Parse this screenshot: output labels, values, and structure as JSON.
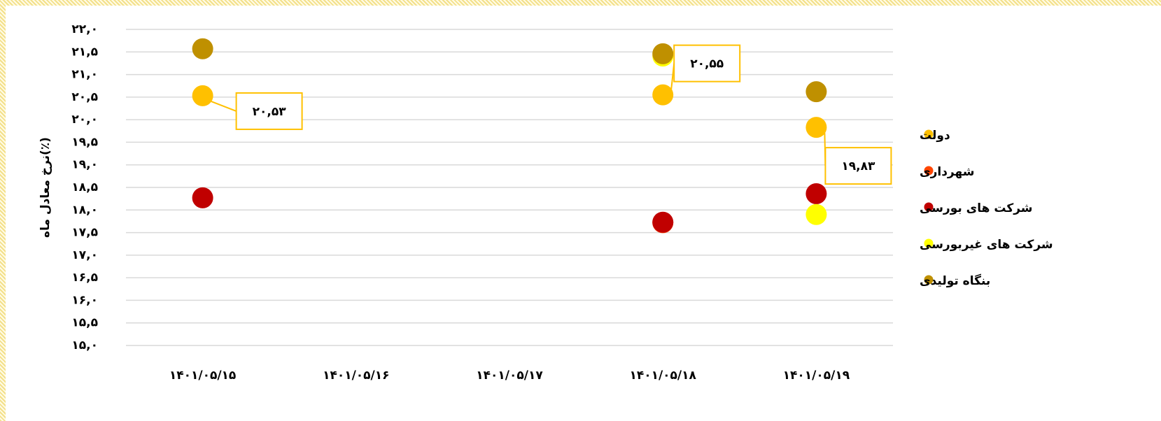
{
  "chart_data": {
    "type": "scatter",
    "y_label": "نرخ معادل ماه(٪)",
    "categories": [
      "۱۴۰۱/۰۵/۱۵",
      "۱۴۰۱/۰۵/۱۶",
      "۱۴۰۱/۰۵/۱۷",
      "۱۴۰۱/۰۵/۱۸",
      "۱۴۰۱/۰۵/۱۹"
    ],
    "series": [
      {
        "name": "دولت",
        "color": "#ffc000",
        "values": [
          20.53,
          null,
          null,
          20.55,
          19.83
        ],
        "value_labels": [
          "۲۰,۵۳",
          null,
          null,
          "۲۰,۵۵",
          "۱۹,۸۳"
        ]
      },
      {
        "name": "شهرداری",
        "color": "#ff4500",
        "values": [
          null,
          null,
          null,
          17.72,
          null
        ]
      },
      {
        "name": "شرکت های بورسی",
        "color": "#c00000",
        "values": [
          18.27,
          null,
          null,
          17.73,
          18.36
        ]
      },
      {
        "name": "شرکت های غیربورسی",
        "color": "#ffff00",
        "values": [
          null,
          null,
          null,
          21.41,
          17.9
        ]
      },
      {
        "name": "بنگاه تولیدی",
        "color": "#bf9000",
        "values": [
          21.57,
          null,
          null,
          21.46,
          20.62
        ]
      }
    ],
    "ylim": [
      15.0,
      22.0
    ],
    "yticks": [
      {
        "value": 15.0,
        "label": "۱۵,۰"
      },
      {
        "value": 15.5,
        "label": "۱۵,۵"
      },
      {
        "value": 16.0,
        "label": "۱۶,۰"
      },
      {
        "value": 16.5,
        "label": "۱۶,۵"
      },
      {
        "value": 17.0,
        "label": "۱۷,۰"
      },
      {
        "value": 17.5,
        "label": "۱۷,۵"
      },
      {
        "value": 18.0,
        "label": "۱۸,۰"
      },
      {
        "value": 18.5,
        "label": "۱۸,۵"
      },
      {
        "value": 19.0,
        "label": "۱۹,۰"
      },
      {
        "value": 19.5,
        "label": "۱۹,۵"
      },
      {
        "value": 20.0,
        "label": "۲۰,۰"
      },
      {
        "value": 20.5,
        "label": "۲۰,۵"
      },
      {
        "value": 21.0,
        "label": "۲۱,۰"
      },
      {
        "value": 21.5,
        "label": "۲۱,۵"
      },
      {
        "value": 22.0,
        "label": "۲۲,۰"
      }
    ],
    "grid": true,
    "legend": "right"
  }
}
